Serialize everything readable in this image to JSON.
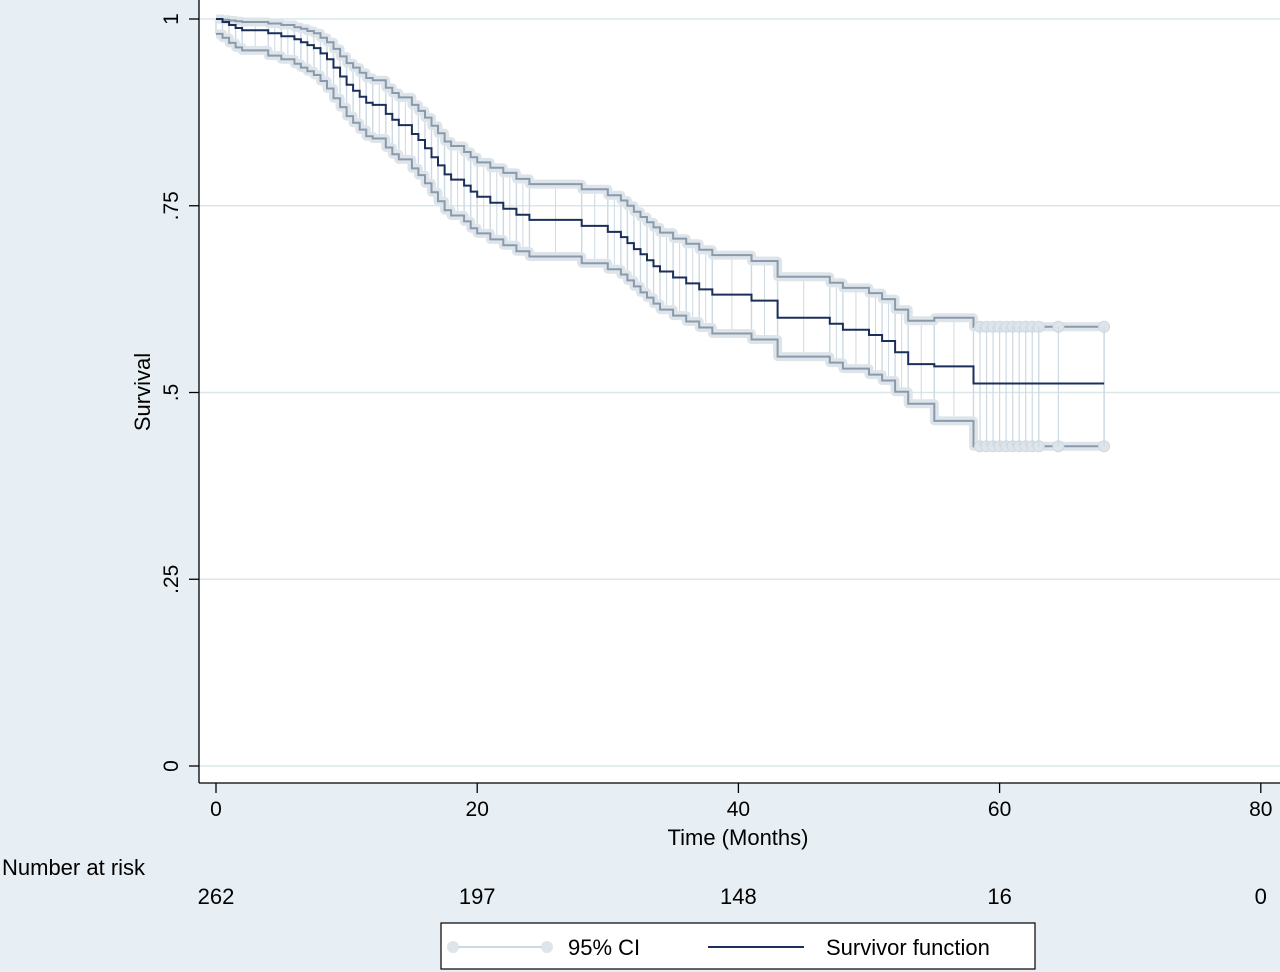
{
  "colors": {
    "outer_bg": "#e8eff4",
    "plot_bg": "#ffffff",
    "grid": "#dbe7ea",
    "survivor": "#1a2f5a",
    "ci_line": "#8a9aab",
    "ci_band": "#cdd9e2",
    "ci_marker": "#dde4ea",
    "axis": "#000000"
  },
  "chart_data": {
    "type": "line",
    "xlabel": "Time (Months)",
    "ylabel": "Survival",
    "xlim": [
      0,
      80
    ],
    "ylim": [
      0,
      1
    ],
    "x_ticks": [
      0,
      20,
      40,
      60,
      80
    ],
    "x_tick_labels": [
      "0",
      "20",
      "40",
      "60",
      "80"
    ],
    "y_ticks": [
      0,
      0.25,
      0.5,
      0.75,
      1
    ],
    "y_tick_labels": [
      "0",
      ".25",
      ".5",
      ".75",
      "1"
    ],
    "grid": "horizontal",
    "legend_position": "bottom",
    "legend": [
      "95% CI",
      "Survivor function"
    ],
    "series": [
      {
        "name": "Survivor function",
        "x": [
          0,
          0.5,
          1,
          1.5,
          2,
          4,
          5,
          6,
          6.5,
          7,
          7.5,
          8,
          8.5,
          9,
          9.5,
          10,
          10.5,
          11,
          11.5,
          12,
          13,
          13.5,
          14,
          15,
          15.5,
          16,
          16.5,
          17,
          17.5,
          18,
          19,
          19.5,
          20,
          21,
          22,
          23,
          24,
          28,
          30,
          31,
          31.5,
          32,
          32.5,
          33,
          33.5,
          34,
          35,
          36,
          37,
          38,
          41,
          43,
          47,
          48,
          50,
          51,
          52,
          53,
          55,
          58,
          68
        ],
        "y": [
          1,
          0.996,
          0.992,
          0.988,
          0.985,
          0.981,
          0.977,
          0.973,
          0.969,
          0.965,
          0.961,
          0.954,
          0.946,
          0.935,
          0.923,
          0.912,
          0.904,
          0.896,
          0.888,
          0.885,
          0.873,
          0.865,
          0.858,
          0.846,
          0.838,
          0.827,
          0.815,
          0.804,
          0.792,
          0.785,
          0.777,
          0.769,
          0.762,
          0.754,
          0.746,
          0.738,
          0.731,
          0.723,
          0.715,
          0.708,
          0.7,
          0.692,
          0.685,
          0.677,
          0.669,
          0.662,
          0.654,
          0.646,
          0.638,
          0.631,
          0.623,
          0.6,
          0.592,
          0.584,
          0.577,
          0.569,
          0.554,
          0.538,
          0.535,
          0.512,
          0.512
        ]
      },
      {
        "name": "95% CI",
        "x": [
          0,
          0.5,
          1,
          1.5,
          2,
          4,
          5,
          6,
          6.5,
          7,
          7.5,
          8,
          8.5,
          9,
          9.5,
          10,
          10.5,
          11,
          11.5,
          12,
          13,
          13.5,
          14,
          15,
          15.5,
          16,
          16.5,
          17,
          17.5,
          18,
          19,
          19.5,
          20,
          21,
          22,
          23,
          24,
          28,
          30,
          31,
          31.5,
          32,
          32.5,
          33,
          33.5,
          34,
          35,
          36,
          37,
          38,
          41,
          43,
          47,
          48,
          50,
          51,
          52,
          53,
          55,
          58,
          68
        ],
        "upper": [
          1,
          0.999,
          0.998,
          0.997,
          0.996,
          0.994,
          0.992,
          0.989,
          0.987,
          0.984,
          0.981,
          0.975,
          0.969,
          0.96,
          0.95,
          0.941,
          0.935,
          0.928,
          0.921,
          0.918,
          0.908,
          0.901,
          0.895,
          0.885,
          0.877,
          0.868,
          0.857,
          0.847,
          0.836,
          0.83,
          0.822,
          0.815,
          0.808,
          0.801,
          0.794,
          0.786,
          0.779,
          0.772,
          0.764,
          0.757,
          0.75,
          0.742,
          0.735,
          0.728,
          0.721,
          0.714,
          0.706,
          0.699,
          0.691,
          0.684,
          0.676,
          0.655,
          0.647,
          0.64,
          0.633,
          0.625,
          0.611,
          0.596,
          0.6,
          0.588,
          0.588
        ],
        "lower": [
          0.98,
          0.975,
          0.968,
          0.962,
          0.958,
          0.951,
          0.946,
          0.94,
          0.935,
          0.93,
          0.925,
          0.917,
          0.907,
          0.894,
          0.882,
          0.87,
          0.861,
          0.852,
          0.843,
          0.84,
          0.828,
          0.819,
          0.812,
          0.8,
          0.791,
          0.78,
          0.768,
          0.756,
          0.744,
          0.737,
          0.729,
          0.72,
          0.713,
          0.705,
          0.697,
          0.689,
          0.682,
          0.673,
          0.665,
          0.658,
          0.65,
          0.642,
          0.634,
          0.627,
          0.619,
          0.611,
          0.603,
          0.595,
          0.587,
          0.579,
          0.571,
          0.548,
          0.54,
          0.532,
          0.524,
          0.516,
          0.501,
          0.485,
          0.462,
          0.428,
          0.428
        ]
      }
    ],
    "censor_x": [
      58.5,
      59,
      59.5,
      60,
      60.5,
      61,
      61.5,
      62,
      62.5,
      63,
      64.5,
      68
    ],
    "risk_table": {
      "label": "Number at risk",
      "times": [
        0,
        20,
        40,
        60,
        80
      ],
      "counts": [
        "262",
        "197",
        "148",
        "16",
        "0"
      ]
    }
  }
}
